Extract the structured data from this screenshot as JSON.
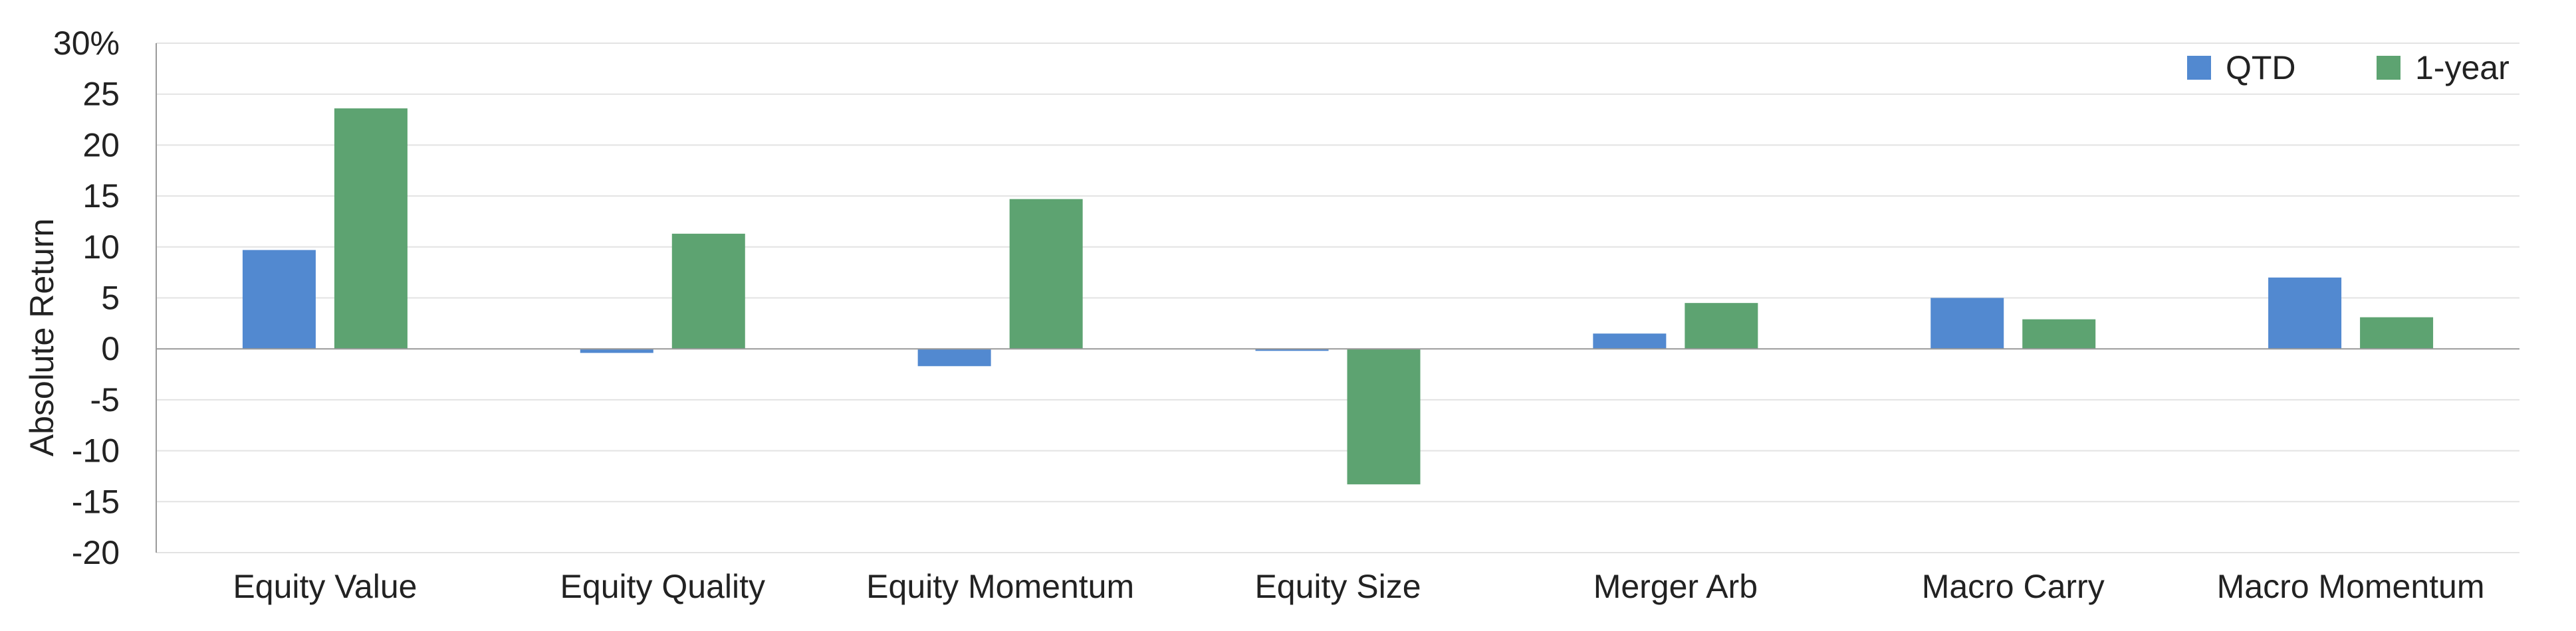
{
  "chart_data": {
    "type": "bar",
    "categories": [
      "Equity Value",
      "Equity Quality",
      "Equity Momentum",
      "Equity Size",
      "Merger Arb",
      "Macro Carry",
      "Macro Momentum"
    ],
    "series": [
      {
        "name": "QTD",
        "color": "#5289d0",
        "values": [
          9.7,
          -0.4,
          -1.7,
          -0.2,
          1.5,
          5.0,
          7.0
        ]
      },
      {
        "name": "1-year",
        "color": "#5da371",
        "values": [
          23.6,
          11.3,
          14.7,
          -13.3,
          4.5,
          2.9,
          3.1
        ]
      }
    ],
    "ylabel": "Absolute Return",
    "ylim": [
      -20,
      30
    ],
    "yticks": [
      {
        "value": 30,
        "label": "30%"
      },
      {
        "value": 25,
        "label": "25"
      },
      {
        "value": 20,
        "label": "20"
      },
      {
        "value": 15,
        "label": "15"
      },
      {
        "value": 10,
        "label": "10"
      },
      {
        "value": 5,
        "label": "5"
      },
      {
        "value": 0,
        "label": "0"
      },
      {
        "value": -5,
        "label": "-5"
      },
      {
        "value": -10,
        "label": "-10"
      },
      {
        "value": -15,
        "label": "-15"
      },
      {
        "value": -20,
        "label": "-20"
      }
    ],
    "grid": true,
    "legend": "top-right",
    "colors": {
      "grid": "#e3e3e3",
      "axis": "#9a9a9a",
      "text": "#222222"
    }
  }
}
